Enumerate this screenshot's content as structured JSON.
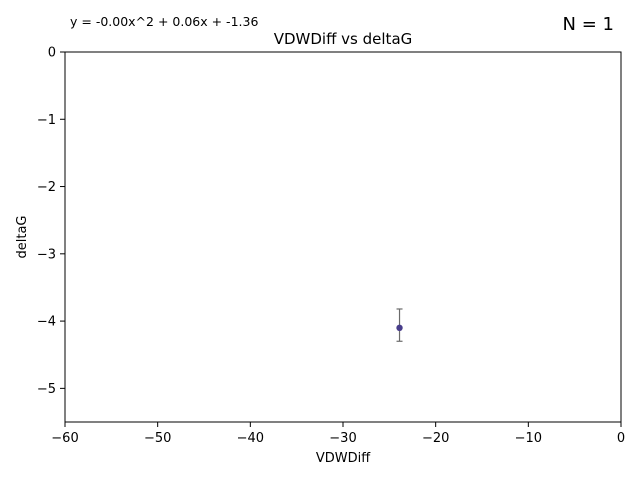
{
  "chart_data": {
    "type": "scatter",
    "title": "VDWDiff vs deltaG",
    "xlabel": "VDWDiff",
    "ylabel": "deltaG",
    "xlim": [
      -60,
      0
    ],
    "ylim": [
      -5.5,
      0
    ],
    "xticks": [
      -60,
      -50,
      -40,
      -30,
      -20,
      -10,
      0
    ],
    "yticks": [
      0,
      -1,
      -2,
      -3,
      -4,
      -5
    ],
    "xtick_labels": [
      "−60",
      "−50",
      "−40",
      "−30",
      "−20",
      "−10",
      "0"
    ],
    "ytick_labels": [
      "0",
      "−1",
      "−2",
      "−3",
      "−4",
      "−5"
    ],
    "grid": false,
    "annotations": {
      "equation": "y = -0.00x^2 + 0.06x + -1.36",
      "count": "N = 1"
    },
    "points": [
      {
        "x": -23.9,
        "y": -4.1,
        "yerr": [
          0.28,
          0.2
        ]
      }
    ],
    "colors": {
      "point": "#483d8b",
      "errorbar": "#6b6b6b",
      "axis": "#000000"
    }
  }
}
